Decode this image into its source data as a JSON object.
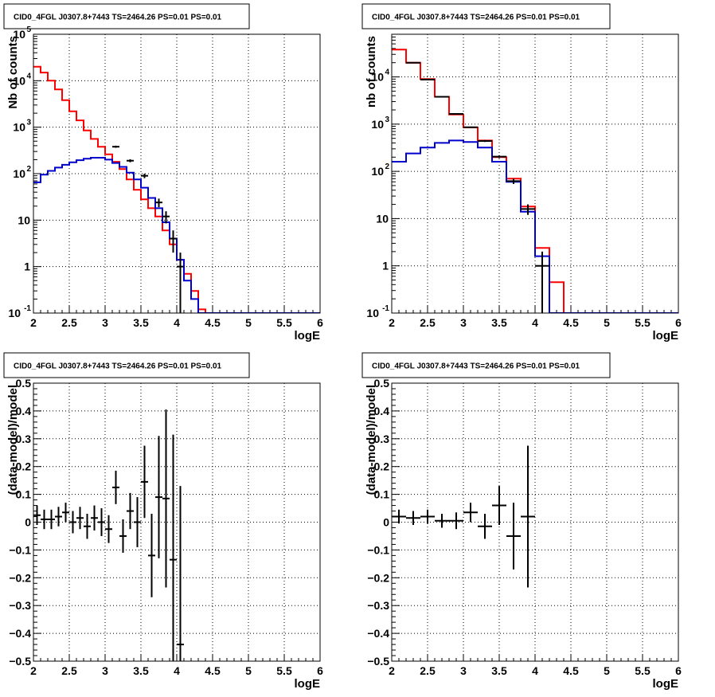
{
  "colors": {
    "data": "#000000",
    "total_model": "#ff0000",
    "source_model": "#0000cc",
    "grid": "#000000",
    "background": "#ffffff"
  },
  "chart_data": [
    {
      "id": "top-left",
      "type": "line",
      "title": "CID0_4FGL J0307.8+7443 TS=2464.26 PS=0.01 PS=0.01",
      "xlabel": "logE",
      "ylabel": "Nb of counts",
      "xlim": [
        2,
        6
      ],
      "ylim": [
        0.1,
        100000
      ],
      "ylog": true,
      "grid": true,
      "x_ticks": [
        "2",
        "2.5",
        "3",
        "3.5",
        "4",
        "4.5",
        "5",
        "5.5",
        "6"
      ],
      "y_ticks": [
        {
          "mant": "10",
          "exp": "-1"
        },
        {
          "mant": "1",
          "exp": ""
        },
        {
          "mant": "10",
          "exp": ""
        },
        {
          "mant": "10",
          "exp": "2"
        },
        {
          "mant": "10",
          "exp": "3"
        },
        {
          "mant": "10",
          "exp": "4"
        },
        {
          "mant": "10",
          "exp": "5"
        }
      ],
      "bin_width": 0.1,
      "series": [
        {
          "role": "total_model",
          "style": "step",
          "x": [
            2.0,
            2.1,
            2.2,
            2.3,
            2.4,
            2.5,
            2.6,
            2.7,
            2.8,
            2.9,
            3.0,
            3.1,
            3.2,
            3.3,
            3.4,
            3.5,
            3.6,
            3.7,
            3.8,
            3.9,
            4.0,
            4.1,
            4.2,
            4.3,
            4.4,
            4.5,
            4.6,
            4.7,
            4.8,
            4.9,
            5.0,
            5.1,
            5.2,
            5.3,
            5.4,
            5.5,
            5.6,
            5.7,
            5.8,
            5.9
          ],
          "y": [
            20000,
            15000,
            10000,
            6500,
            3800,
            2200,
            1400,
            850,
            560,
            380,
            260,
            180,
            125,
            75,
            45,
            28,
            18,
            12,
            6,
            3,
            1.4,
            0.7,
            0.3,
            0.12,
            0.1,
            0.1,
            0.1,
            0.1,
            0.1,
            0.1,
            0.1,
            0.1,
            0.1,
            0.1,
            0.1,
            0.1,
            0.1,
            0.1,
            0.1,
            0.1
          ]
        },
        {
          "role": "source_model",
          "style": "step",
          "x": [
            2.0,
            2.1,
            2.2,
            2.3,
            2.4,
            2.5,
            2.6,
            2.7,
            2.8,
            2.9,
            3.0,
            3.1,
            3.2,
            3.3,
            3.4,
            3.5,
            3.6,
            3.7,
            3.8,
            3.9,
            4.0,
            4.1,
            4.2,
            4.3,
            4.4,
            4.5,
            4.6,
            4.7,
            4.8,
            4.9,
            5.0,
            5.1,
            5.2,
            5.3,
            5.4,
            5.5,
            5.6,
            5.7,
            5.8,
            5.9
          ],
          "y": [
            65,
            95,
            115,
            135,
            155,
            175,
            195,
            210,
            220,
            220,
            200,
            170,
            140,
            105,
            75,
            50,
            30,
            18,
            9,
            4,
            1.4,
            0.5,
            0.2,
            0.1,
            0.1,
            0.1,
            0.1,
            0.1,
            0.1,
            0.1,
            0.1,
            0.1,
            0.1,
            0.1,
            0.1,
            0.1,
            0.1,
            0.1,
            0.1,
            0.1
          ]
        },
        {
          "role": "data",
          "style": "errorbar",
          "x": [
            3.15,
            3.35,
            3.55,
            3.75,
            3.85,
            3.95,
            4.05
          ],
          "y": [
            380,
            190,
            90,
            24,
            12,
            4,
            1
          ],
          "yerr": [
            20,
            14,
            10,
            5,
            3.5,
            2,
            1
          ]
        }
      ]
    },
    {
      "id": "top-right",
      "type": "line",
      "title": "CID0_4FGL J0307.8+7443 TS=2464.26 PS=0.01 PS=0.01",
      "xlabel": "logE",
      "ylabel": "nb of counts",
      "xlim": [
        2,
        6
      ],
      "ylim": [
        0.1,
        80000
      ],
      "ylog": true,
      "grid": true,
      "x_ticks": [
        "2",
        "2.5",
        "3",
        "3.5",
        "4",
        "4.5",
        "5",
        "5.5",
        "6"
      ],
      "y_ticks": [
        {
          "mant": "10",
          "exp": "-1"
        },
        {
          "mant": "1",
          "exp": ""
        },
        {
          "mant": "10",
          "exp": ""
        },
        {
          "mant": "10",
          "exp": "2"
        },
        {
          "mant": "10",
          "exp": "3"
        },
        {
          "mant": "10",
          "exp": "4"
        }
      ],
      "bin_width": 0.2,
      "series": [
        {
          "role": "total_model",
          "style": "step",
          "x": [
            2.0,
            2.2,
            2.4,
            2.6,
            2.8,
            3.0,
            3.2,
            3.4,
            3.6,
            3.8,
            4.0,
            4.2,
            4.4,
            4.6,
            4.8,
            5.0,
            5.2,
            5.4,
            5.6,
            5.8
          ],
          "y": [
            38000,
            20000,
            9000,
            3800,
            1600,
            850,
            450,
            200,
            70,
            18,
            2.4,
            0.45,
            0.1,
            0.1,
            0.1,
            0.1,
            0.1,
            0.1,
            0.1,
            0.1
          ]
        },
        {
          "role": "source_model",
          "style": "step",
          "x": [
            2.0,
            2.2,
            2.4,
            2.6,
            2.8,
            3.0,
            3.2,
            3.4,
            3.6,
            3.8,
            4.0,
            4.2,
            4.4,
            4.6,
            4.8,
            5.0,
            5.2,
            5.4,
            5.6,
            5.8
          ],
          "y": [
            160,
            240,
            320,
            400,
            450,
            420,
            320,
            160,
            60,
            14,
            1.6,
            0.1,
            0.1,
            0.1,
            0.1,
            0.1,
            0.1,
            0.1,
            0.1,
            0.1
          ]
        },
        {
          "role": "data",
          "style": "errorbar",
          "x": [
            2.3,
            2.5,
            2.7,
            2.9,
            3.1,
            3.3,
            3.5,
            3.7,
            3.9,
            4.1
          ],
          "y": [
            20000,
            8800,
            3800,
            1650,
            860,
            440,
            205,
            62,
            16,
            1
          ],
          "yerr": [
            140,
            94,
            62,
            41,
            29,
            21,
            14,
            8,
            4,
            1
          ]
        }
      ]
    },
    {
      "id": "bottom-left",
      "type": "scatter",
      "title": "CID0_4FGL J0307.8+7443 TS=2464.26 PS=0.01 PS=0.01",
      "xlabel": "logE",
      "ylabel": "(data-model)/model",
      "xlim": [
        2,
        6
      ],
      "ylim": [
        -0.5,
        0.5
      ],
      "ylog": false,
      "grid": true,
      "x_ticks": [
        "2",
        "2.5",
        "3",
        "3.5",
        "4",
        "4.5",
        "5",
        "5.5",
        "6"
      ],
      "y_ticks": [
        "−0.5",
        "−0.4",
        "−0.3",
        "−0.2",
        "−0.1",
        "0",
        "0.1",
        "0.2",
        "0.3",
        "0.4",
        "0.5"
      ],
      "bin_width": 0.1,
      "series": [
        {
          "role": "data",
          "style": "errorbar",
          "x": [
            2.05,
            2.15,
            2.25,
            2.35,
            2.45,
            2.55,
            2.65,
            2.75,
            2.85,
            2.95,
            3.05,
            3.15,
            3.25,
            3.35,
            3.45,
            3.55,
            3.65,
            3.75,
            3.85,
            3.95,
            4.05
          ],
          "y": [
            0.025,
            0.01,
            0.01,
            0.02,
            0.035,
            0.0,
            0.015,
            -0.015,
            0.015,
            0.0,
            -0.025,
            0.125,
            -0.05,
            0.04,
            0.0,
            0.145,
            -0.12,
            0.09,
            0.085,
            -0.135,
            -0.44
          ],
          "yerr": [
            0.035,
            0.035,
            0.035,
            0.035,
            0.035,
            0.04,
            0.04,
            0.045,
            0.045,
            0.05,
            0.05,
            0.06,
            0.06,
            0.065,
            0.09,
            0.13,
            0.15,
            0.22,
            0.32,
            0.45,
            0.57
          ]
        }
      ]
    },
    {
      "id": "bottom-right",
      "type": "scatter",
      "title": "CID0_4FGL J0307.8+7443 TS=2464.26 PS=0.01 PS=0.01",
      "xlabel": "logE",
      "ylabel": "(data-model)/model",
      "xlim": [
        2,
        6
      ],
      "ylim": [
        -0.5,
        0.5
      ],
      "ylog": false,
      "grid": true,
      "x_ticks": [
        "2",
        "2.5",
        "3",
        "3.5",
        "4",
        "4.5",
        "5",
        "5.5",
        "6"
      ],
      "y_ticks": [
        "−0.5",
        "−0.4",
        "−0.3",
        "−0.2",
        "−0.1",
        "0",
        "0.1",
        "0.2",
        "0.3",
        "0.4",
        "0.5"
      ],
      "bin_width": 0.2,
      "series": [
        {
          "role": "data",
          "style": "errorbar",
          "x": [
            2.1,
            2.3,
            2.5,
            2.7,
            2.9,
            3.1,
            3.3,
            3.5,
            3.7,
            3.9
          ],
          "y": [
            0.02,
            0.015,
            0.02,
            0.005,
            0.005,
            0.035,
            -0.015,
            0.06,
            -0.05,
            0.02
          ],
          "yerr": [
            0.025,
            0.025,
            0.025,
            0.025,
            0.03,
            0.035,
            0.045,
            0.07,
            0.12,
            0.255
          ]
        }
      ]
    }
  ]
}
